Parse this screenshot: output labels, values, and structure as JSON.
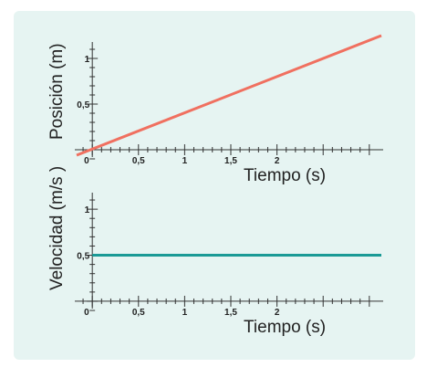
{
  "colors": {
    "panel_background": "#e6f4f2",
    "axis": "#333333",
    "text": "#222222",
    "position_series": "#f07060",
    "velocity_series": "#1a9a96"
  },
  "chart_data": [
    {
      "type": "line",
      "xlabel": "Tiempo (s)",
      "ylabel": "Posición (m)",
      "xlim": [
        -0.15,
        3.15
      ],
      "ylim": [
        -0.08,
        1.16
      ],
      "x_ticks": [
        {
          "value": 0,
          "label": "0"
        },
        {
          "value": 0.5,
          "label": "0,5"
        },
        {
          "value": 1,
          "label": "1"
        },
        {
          "value": 1.5,
          "label": "1,5"
        },
        {
          "value": 2,
          "label": "2"
        }
      ],
      "x_minor_step": 0.1,
      "x_minor_range": [
        -0.1,
        3.0
      ],
      "y_ticks": [
        {
          "value": 0.5,
          "label": "0,5"
        },
        {
          "value": 1,
          "label": "1"
        }
      ],
      "y_minor_step": 0.1,
      "y_minor_range": [
        -0.1,
        1.1
      ],
      "grid": false,
      "series": [
        {
          "x": [
            -0.17,
            3.13
          ],
          "y": [
            -0.06,
            1.25
          ],
          "color": "#f07060"
        }
      ]
    },
    {
      "type": "line",
      "xlabel": "Tiempo (s)",
      "ylabel": "Velocidad (m/s )",
      "xlim": [
        -0.15,
        3.15
      ],
      "ylim": [
        -0.08,
        1.16
      ],
      "x_ticks": [
        {
          "value": 0,
          "label": "0"
        },
        {
          "value": 0.5,
          "label": "0,5"
        },
        {
          "value": 1,
          "label": "1"
        },
        {
          "value": 1.5,
          "label": "1,5"
        },
        {
          "value": 2,
          "label": "2"
        }
      ],
      "x_minor_step": 0.1,
      "x_minor_range": [
        -0.1,
        3.0
      ],
      "y_ticks": [
        {
          "value": 0.5,
          "label": "0,5"
        },
        {
          "value": 1,
          "label": "1"
        }
      ],
      "y_minor_step": 0.1,
      "y_minor_range": [
        -0.1,
        1.1
      ],
      "grid": false,
      "series": [
        {
          "x": [
            0,
            3.13
          ],
          "y": [
            0.5,
            0.5
          ],
          "color": "#1a9a96"
        }
      ]
    }
  ]
}
